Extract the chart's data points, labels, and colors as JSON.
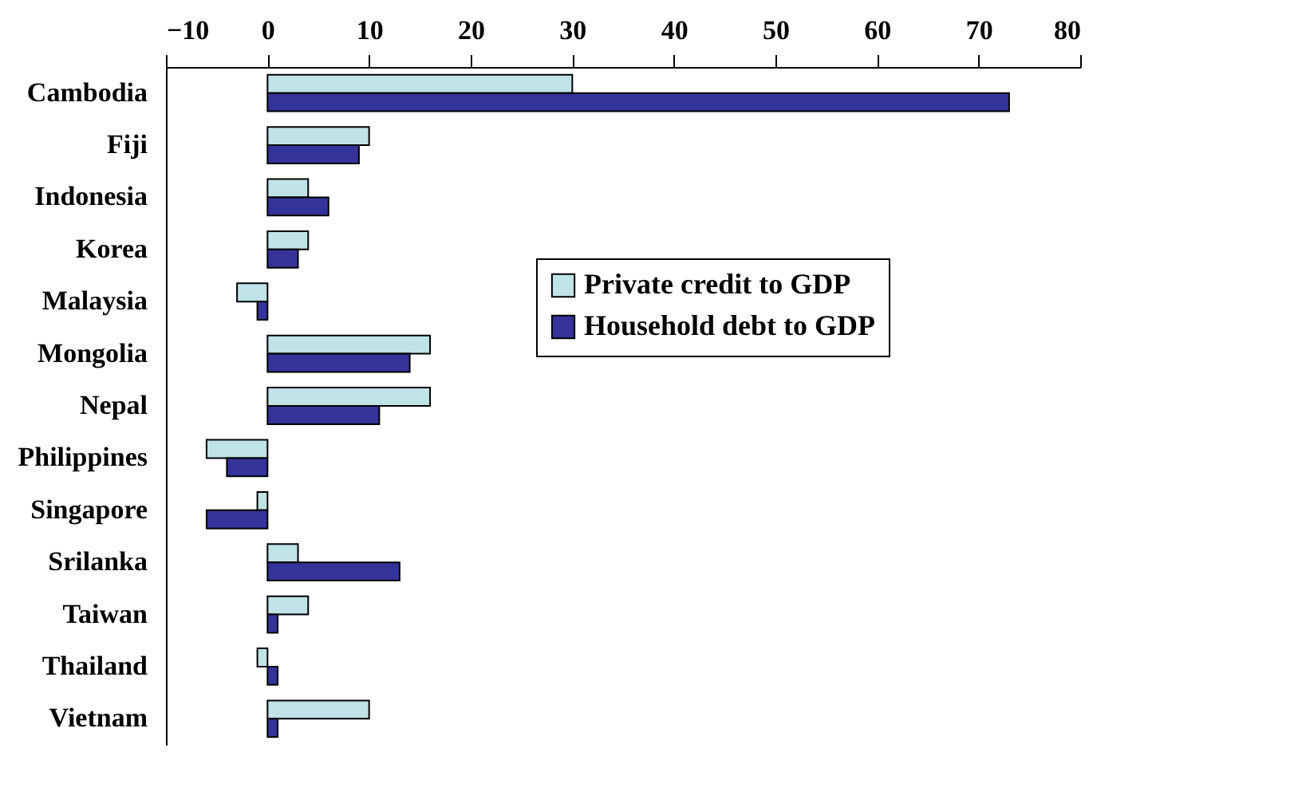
{
  "chart_data": {
    "type": "bar",
    "orientation": "horizontal",
    "categories": [
      "Cambodia",
      "Fiji",
      "Indonesia",
      "Korea",
      "Malaysia",
      "Mongolia",
      "Nepal",
      "Philippines",
      "Singapore",
      "Srilanka",
      "Taiwan",
      "Thailand",
      "Vietnam"
    ],
    "series": [
      {
        "name": "Private credit to GDP",
        "color": "#bfe3e6",
        "values": [
          30,
          10,
          4,
          4,
          -3,
          16,
          16,
          -6,
          -1,
          3,
          4,
          -1,
          10
        ]
      },
      {
        "name": "Household debt to GDP",
        "color": "#333399",
        "values": [
          73,
          9,
          6,
          3,
          -1,
          14,
          11,
          -4,
          -6,
          13,
          1,
          1,
          1
        ]
      }
    ],
    "xlim": [
      -10,
      80
    ],
    "xticks": [
      -10,
      0,
      10,
      20,
      30,
      40,
      50,
      60,
      70,
      80
    ],
    "legend": "top right",
    "grid": false
  }
}
